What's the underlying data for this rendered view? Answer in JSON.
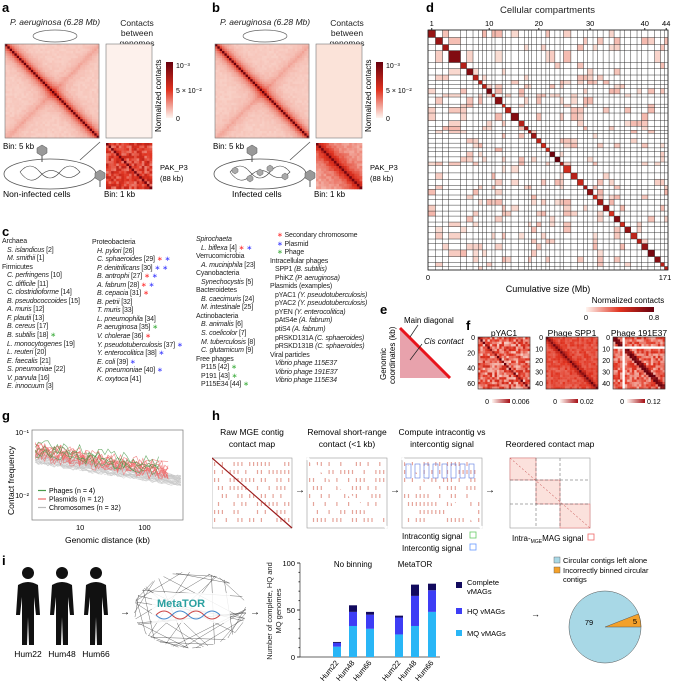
{
  "panels": {
    "a": "a",
    "b": "b",
    "c": "c",
    "d": "d",
    "e": "e",
    "f": "f",
    "g": "g",
    "h": "h",
    "i": "i"
  },
  "panel_a": {
    "organism": "P. aeruginosa (6.28 Mb)",
    "contacts_title": "Contacts between genomes",
    "colorbar_label": "Normalized contacts",
    "cb_max": "10⁻³",
    "cb_mid": "5 × 10⁻²",
    "cb_min": "0",
    "bin_left": "Bin: 5 kb",
    "bin_right": "Bin: 1 kb",
    "cell_label": "Non-infected cells",
    "phage_name": "PAK_P3",
    "phage_size": "(88 kb)"
  },
  "panel_b": {
    "organism": "P. aeruginosa (6.28 Mb)",
    "contacts_title": "Contacts between genomes",
    "colorbar_label": "Normalized contacts",
    "cb_max": "10⁻³",
    "cb_mid": "5 × 10⁻²",
    "cb_min": "0",
    "bin_left": "Bin: 5 kb",
    "bin_right": "Bin: 1 kb",
    "cell_label": "Infected cells",
    "phage_name": "PAK_P3",
    "phage_size": "(88 kb)"
  },
  "colors": {
    "heat_dark": "#67000d",
    "heat_mid": "#e0321f",
    "heat_light": "#fde6dc",
    "secondary": "#ff3030",
    "plasmid": "#3a3aff",
    "phage": "#3fae3f",
    "mq": "#29b6f6",
    "hq": "#3d3df5",
    "complete": "#120a5e",
    "pie_alone": "#a8d8e6",
    "pie_wrong": "#f4a12a"
  },
  "panel_c": {
    "columns": [
      [
        {
          "t": "Archaea",
          "h": true
        },
        {
          "t": "S. islandicus",
          "n": "[2]"
        },
        {
          "t": "M. smithii",
          "n": "[1]"
        },
        {
          "t": "Firmicutes",
          "h": true
        },
        {
          "t": "C. perfringens",
          "n": "[10]"
        },
        {
          "t": "C. difficile",
          "n": "[11]"
        },
        {
          "t": "C. clostridioforme",
          "n": "[14]"
        },
        {
          "t": "B. pseudococcoides",
          "n": "[15]"
        },
        {
          "t": "A. muris",
          "n": "[12]"
        },
        {
          "t": "F. plautii",
          "n": "[13]"
        },
        {
          "t": "B. cereus",
          "n": "[17]"
        },
        {
          "t": "B. subtilis",
          "n": "[18]",
          "m": [
            "phage"
          ]
        },
        {
          "t": "L. monocytogenes",
          "n": "[19]"
        },
        {
          "t": "L. reuteri",
          "n": "[20]"
        },
        {
          "t": "E. faecalis",
          "n": "[21]"
        },
        {
          "t": "S. pneumoniae",
          "n": "[22]"
        },
        {
          "t": "V. parvula",
          "n": "[16]"
        },
        {
          "t": "E. innocuum",
          "n": "[3]"
        }
      ],
      [
        {
          "t": "Proteobacteria",
          "h": true
        },
        {
          "t": "H. pylori",
          "n": "[26]"
        },
        {
          "t": "C. sphaeroides",
          "n": "[29]",
          "m": [
            "secondary",
            "plasmid"
          ]
        },
        {
          "t": "P. denitrificans",
          "n": "[30]",
          "m": [
            "plasmid",
            "plasmid"
          ]
        },
        {
          "t": "B. antrophi",
          "n": "[27]",
          "m": [
            "secondary",
            "plasmid"
          ]
        },
        {
          "t": "A. fabrum",
          "n": "[28]",
          "m": [
            "secondary",
            "plasmid"
          ]
        },
        {
          "t": "B. cepacia",
          "n": "[31]",
          "m": [
            "secondary"
          ]
        },
        {
          "t": "B. petrii",
          "n": "[32]"
        },
        {
          "t": "T. muris",
          "n": "[33]"
        },
        {
          "t": "L. pneumophila",
          "n": "[34]"
        },
        {
          "t": "P. aeruginosa",
          "n": "[35]",
          "m": [
            "phage"
          ]
        },
        {
          "t": "V. cholerae",
          "n": "[36]",
          "m": [
            "secondary"
          ]
        },
        {
          "t": "Y. pseudotuberculosis",
          "n": "[37]",
          "m": [
            "plasmid"
          ]
        },
        {
          "t": "Y. enterocolitica",
          "n": "[38]",
          "m": [
            "plasmid"
          ]
        },
        {
          "t": "E. coli",
          "n": "[39]",
          "m": [
            "plasmid"
          ]
        },
        {
          "t": "K. pneumoniae",
          "n": "[40]",
          "m": [
            "plasmid"
          ]
        },
        {
          "t": "K. oxytoca",
          "n": "[41]"
        }
      ],
      [
        {
          "t": "Spirochaeta",
          "h": true,
          "i": true
        },
        {
          "t": "L. biflexa",
          "n": "[4]",
          "m": [
            "secondary",
            "plasmid"
          ]
        },
        {
          "t": "Verrucomicrobia",
          "h": true
        },
        {
          "t": "A. muciniphila",
          "n": "[23]"
        },
        {
          "t": "Cyanobacteria",
          "h": true
        },
        {
          "t": "Synechocystis",
          "n": "[5]"
        },
        {
          "t": "Bacteroidetes",
          "h": true
        },
        {
          "t": "B. caecimuris",
          "n": "[24]"
        },
        {
          "t": "M. intestinale",
          "n": "[25]"
        },
        {
          "t": "Actinobacteria",
          "h": true
        },
        {
          "t": "B. animalis",
          "n": "[6]"
        },
        {
          "t": "S. coelicolor",
          "n": "[7]"
        },
        {
          "t": "M. tuberculosis",
          "n": "[8]"
        },
        {
          "t": "C. glutamicum",
          "n": "[9]"
        },
        {
          "t": "Free phages",
          "h": true
        },
        {
          "t": "P115",
          "n": "[42]",
          "m": [
            "phage"
          ],
          "r": true
        },
        {
          "t": "P191",
          "n": "[43]",
          "m": [
            "phage"
          ],
          "r": true
        },
        {
          "t": "P115E34",
          "n": "[44]",
          "m": [
            "phage"
          ],
          "r": true
        }
      ],
      [
        {
          "t": "Secondary chromosome",
          "legend": "secondary"
        },
        {
          "t": "Plasmid",
          "legend": "plasmid"
        },
        {
          "t": "Phage",
          "legend": "phage"
        },
        {
          "t": "Intracellular phages",
          "h": true
        },
        {
          "t": "SPP1",
          "n": "(B. subtilis)",
          "r": true
        },
        {
          "t": "PhiKZ",
          "n": "(P. aeruginosa)",
          "r": true
        },
        {
          "t": "Plasmids (examples)",
          "h": true
        },
        {
          "t": "pYAC1",
          "n": "(Y. pseudotuberculosis)",
          "r": true
        },
        {
          "t": "pYAC2",
          "n": "(Y. pseudotuberculosis)",
          "r": true
        },
        {
          "t": "pYEN",
          "n": "(Y. enterocolitica)",
          "r": true
        },
        {
          "t": "pAtS4e",
          "n": "(A. fabrum)",
          "r": true
        },
        {
          "t": "ptiS4",
          "n": "(A. fabrum)",
          "r": true
        },
        {
          "t": "pRSKD131A",
          "n": "(C. sphaeroides)",
          "r": true
        },
        {
          "t": "pRSKD131B",
          "n": "(C. sphaeroides)",
          "r": true
        },
        {
          "t": "Viral particles",
          "h": true
        },
        {
          "t": "Vibrio phage 115E37"
        },
        {
          "t": "Vibrio phage 191E37"
        },
        {
          "t": "Vibrio phage 115E34"
        }
      ]
    ]
  },
  "panel_d": {
    "title": "Cellular compartments",
    "top_ticks": [
      "1",
      "10",
      "20",
      "30",
      "40",
      "44"
    ],
    "x_min": "0",
    "x_max": "171",
    "xlabel": "Cumulative size (Mb)",
    "colorbar_label": "Normalized contacts",
    "cb_min": "0",
    "cb_max": "0.8",
    "n_compartments": 44
  },
  "panel_e": {
    "main_diagonal": "Main diagonal",
    "cis_contact": "Cis contact",
    "ylabel_1": "Genomic",
    "ylabel_2": "coordinates (kb)"
  },
  "panel_f": {
    "maps": [
      {
        "title": "pYAC1",
        "ticks": [
          "0",
          "20",
          "40",
          "60"
        ],
        "cb_min": "0",
        "cb_max": "0.006"
      },
      {
        "title": "Phage SPP1",
        "ticks": [
          "0",
          "10",
          "20",
          "30",
          "40"
        ],
        "cb_min": "0",
        "cb_max": "0.02"
      },
      {
        "title": "Phage 191E37",
        "ticks": [
          "0",
          "10",
          "20",
          "30",
          "40"
        ],
        "cb_min": "0",
        "cb_max": "0.12"
      }
    ]
  },
  "panel_g": {
    "ylabel": "Contact frequency",
    "xlabel": "Genomic distance (kb)",
    "y_ticks": [
      "10⁻¹",
      "10⁻²"
    ],
    "x_ticks": [
      "10",
      "100"
    ],
    "x_scale": "log",
    "y_scale": "log",
    "legend": [
      {
        "label": "Phages (n = 4)",
        "color": "#4a9a4a"
      },
      {
        "label": "Plasmids (n = 12)",
        "color": "#ee6a6a"
      },
      {
        "label": "Chromosomes (n = 32)",
        "color": "#bbbbbb"
      }
    ]
  },
  "panel_h": {
    "steps": [
      {
        "title1": "Raw MGE contig",
        "title2": "contact map"
      },
      {
        "title1": "Removal short-range",
        "title2": "contact (<1 kb)"
      },
      {
        "title1": "Compute intracontig vs",
        "title2": "intercontig signal"
      },
      {
        "title1": "Reordered contact map",
        "title2": ""
      }
    ],
    "intra_label": "Intracontig signal",
    "inter_label": "Intercontig signal",
    "mag_label_pre": "Intra-",
    "mag_label_sub": "MGE",
    "mag_label_post": "MAG signal"
  },
  "panel_i": {
    "humans": [
      "Hum22",
      "Hum48",
      "Hum66"
    ],
    "logo": "MetaTOR",
    "chart_data": [
      {
        "type": "bar",
        "stacked": true,
        "ylabel": "Number of complete, HQ and MQ genomes",
        "ylim": [
          0,
          100
        ],
        "y_ticks": [
          "0",
          "50",
          "100"
        ],
        "groups": [
          "No binning",
          "MetaTOR"
        ],
        "categories": [
          "Hum22",
          "Hum48",
          "Hum66",
          "Hum22",
          "Hum48",
          "Hum66"
        ],
        "series": [
          {
            "name": "MQ vMAGs",
            "values": [
              11,
              33,
              30,
              24,
              33,
              48
            ]
          },
          {
            "name": "HQ vMAGs",
            "values": [
              4,
              15,
              15,
              18,
              32,
              23
            ]
          },
          {
            "name": "Complete vMAGs",
            "values": [
              1,
              7,
              3,
              2,
              12,
              7
            ]
          }
        ],
        "legend_labels": [
          "Complete",
          "vMAGs",
          "HQ vMAGs",
          "MQ vMAGs"
        ]
      },
      {
        "type": "pie",
        "slices": [
          {
            "name": "Circular contigs left alone",
            "value": 79
          },
          {
            "name": "Incorrectly binned circular contigs",
            "value": 5
          }
        ],
        "legend_line2": "contigs",
        "legend_line1": "Incorrectly binned circular"
      }
    ]
  }
}
